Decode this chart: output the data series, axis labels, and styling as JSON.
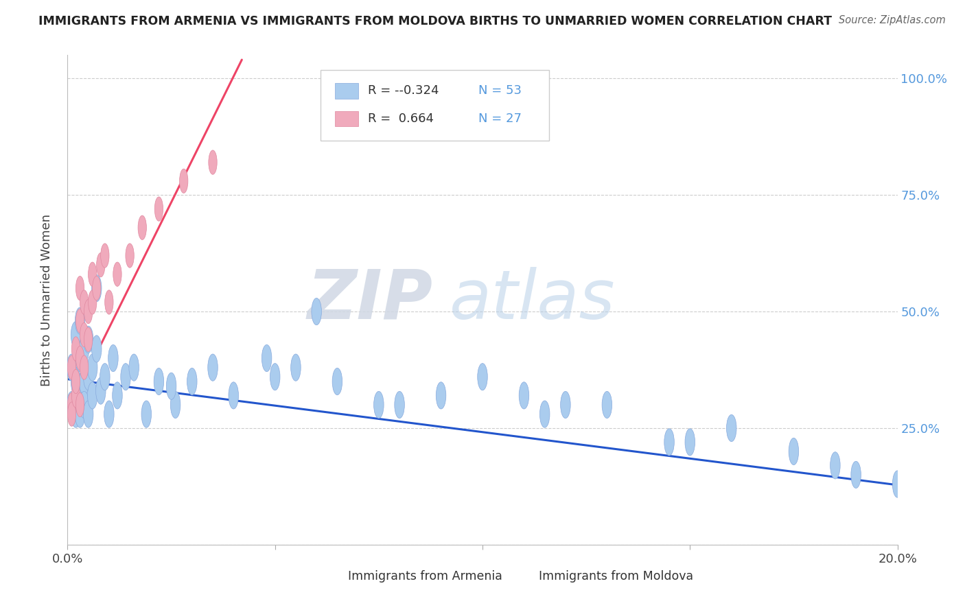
{
  "title": "IMMIGRANTS FROM ARMENIA VS IMMIGRANTS FROM MOLDOVA BIRTHS TO UNMARRIED WOMEN CORRELATION CHART",
  "source": "Source: ZipAtlas.com",
  "ylabel": "Births to Unmarried Women",
  "xlim": [
    0.0,
    0.2
  ],
  "ylim": [
    0.0,
    1.05
  ],
  "armenia_color": "#aaccee",
  "moldova_color": "#f0aabc",
  "armenia_edge": "#88aadd",
  "moldova_edge": "#e088a0",
  "line_armenia_color": "#2255cc",
  "line_moldova_color": "#ee4466",
  "watermark_zip": "ZIP",
  "watermark_atlas": "atlas",
  "background_color": "#ffffff",
  "legend_r1": "-0.324",
  "legend_n1": "53",
  "legend_r2": "0.664",
  "legend_n2": "27",
  "right_ytick_color": "#5599dd",
  "arm_line_y0": 0.355,
  "arm_line_y1": 0.128,
  "mol_line_x0": 0.0,
  "mol_line_y0": 0.285,
  "mol_line_x1": 0.042,
  "mol_line_y1": 1.04,
  "armenia_x": [
    0.001,
    0.001,
    0.002,
    0.002,
    0.002,
    0.003,
    0.003,
    0.003,
    0.003,
    0.004,
    0.004,
    0.004,
    0.005,
    0.005,
    0.005,
    0.006,
    0.006,
    0.007,
    0.007,
    0.008,
    0.009,
    0.01,
    0.011,
    0.012,
    0.014,
    0.016,
    0.019,
    0.022,
    0.026,
    0.03,
    0.035,
    0.04,
    0.048,
    0.055,
    0.065,
    0.075,
    0.09,
    0.1,
    0.115,
    0.13,
    0.145,
    0.16,
    0.175,
    0.19,
    0.2,
    0.06,
    0.08,
    0.11,
    0.025,
    0.05,
    0.12,
    0.15,
    0.185
  ],
  "armenia_y": [
    0.3,
    0.38,
    0.28,
    0.35,
    0.45,
    0.32,
    0.4,
    0.48,
    0.28,
    0.35,
    0.42,
    0.3,
    0.36,
    0.44,
    0.28,
    0.38,
    0.32,
    0.42,
    0.55,
    0.33,
    0.36,
    0.28,
    0.4,
    0.32,
    0.36,
    0.38,
    0.28,
    0.35,
    0.3,
    0.35,
    0.38,
    0.32,
    0.4,
    0.38,
    0.35,
    0.3,
    0.32,
    0.36,
    0.28,
    0.3,
    0.22,
    0.25,
    0.2,
    0.15,
    0.13,
    0.5,
    0.3,
    0.32,
    0.34,
    0.36,
    0.3,
    0.22,
    0.17
  ],
  "moldova_x": [
    0.001,
    0.001,
    0.001,
    0.002,
    0.002,
    0.002,
    0.003,
    0.003,
    0.003,
    0.003,
    0.004,
    0.004,
    0.004,
    0.005,
    0.005,
    0.006,
    0.006,
    0.007,
    0.008,
    0.009,
    0.01,
    0.012,
    0.015,
    0.018,
    0.022,
    0.028,
    0.035
  ],
  "moldova_y": [
    0.3,
    0.38,
    0.28,
    0.32,
    0.42,
    0.35,
    0.4,
    0.48,
    0.55,
    0.3,
    0.45,
    0.52,
    0.38,
    0.5,
    0.44,
    0.52,
    0.58,
    0.55,
    0.6,
    0.62,
    0.52,
    0.58,
    0.62,
    0.68,
    0.72,
    0.78,
    0.82
  ]
}
